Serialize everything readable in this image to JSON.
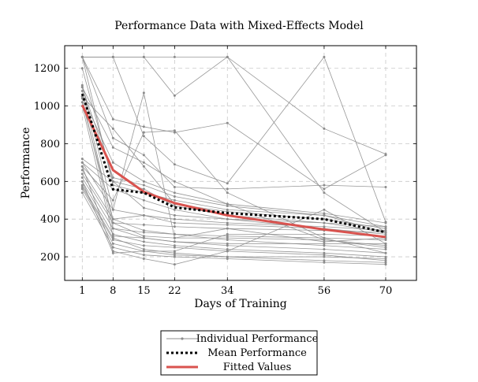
{
  "chart_data": {
    "type": "line",
    "title": "Performance Data with Mixed-Effects Model",
    "xlabel": "Days of Training",
    "ylabel": "Performance",
    "x": [
      1,
      8,
      15,
      22,
      34,
      56,
      70
    ],
    "xticks": [
      "1",
      "8",
      "15",
      "22",
      "34",
      "56",
      "70"
    ],
    "yticks": [
      "200",
      "400",
      "600",
      "800",
      "1000",
      "1200"
    ],
    "xlim": [
      -3,
      77
    ],
    "ylim": [
      75,
      1320
    ],
    "grid": true,
    "legend_position": "bottom",
    "colors": {
      "individual": "#8c8c8c",
      "mean": "#000000",
      "fitted": "#d9534f"
    },
    "legend": [
      "Individual Performance",
      "Mean Performance",
      "Fitted Values"
    ],
    "individual_series": [
      [
        1260,
        1260,
        1260,
        1260,
        1260,
        880,
        745
      ],
      [
        1260,
        1260,
        1260,
        1055,
        1260,
        540,
        330
      ],
      [
        1260,
        1260,
        840,
        690,
        590,
        1260,
        385
      ],
      [
        1260,
        930,
        890,
        860,
        910,
        560,
        740
      ],
      [
        1260,
        830,
        740,
        570,
        560,
        580,
        570
      ],
      [
        1260,
        580,
        540,
        500,
        450,
        420,
        330
      ],
      [
        1110,
        450,
        1070,
        300,
        300,
        290,
        260
      ],
      [
        1050,
        880,
        680,
        480,
        440,
        400,
        350
      ],
      [
        720,
        600,
        560,
        470,
        420,
        380,
        330
      ],
      [
        700,
        560,
        500,
        450,
        400,
        350,
        300
      ],
      [
        680,
        500,
        860,
        870,
        540,
        300,
        220
      ],
      [
        660,
        400,
        340,
        320,
        290,
        260,
        240
      ],
      [
        640,
        380,
        310,
        300,
        350,
        280,
        300
      ],
      [
        620,
        350,
        300,
        280,
        260,
        240,
        220
      ],
      [
        600,
        320,
        280,
        260,
        240,
        220,
        200
      ],
      [
        580,
        300,
        240,
        220,
        200,
        200,
        190
      ],
      [
        570,
        290,
        260,
        250,
        230,
        210,
        180
      ],
      [
        560,
        270,
        230,
        210,
        200,
        180,
        170
      ],
      [
        540,
        250,
        210,
        200,
        190,
        170,
        160
      ],
      [
        680,
        230,
        190,
        160,
        230,
        450,
        270
      ],
      [
        600,
        220,
        230,
        230,
        320,
        320,
        310
      ],
      [
        1020,
        400,
        420,
        380,
        370,
        350,
        320
      ],
      [
        1050,
        700,
        600,
        540,
        480,
        430,
        380
      ],
      [
        1100,
        620,
        580,
        520,
        470,
        420,
        360
      ],
      [
        1100,
        780,
        700,
        600,
        480,
        290,
        250
      ],
      [
        1080,
        380,
        370,
        360,
        350,
        340,
        330
      ],
      [
        1040,
        350,
        330,
        320,
        310,
        300,
        290
      ],
      [
        1000,
        310,
        300,
        280,
        270,
        270,
        270
      ],
      [
        1200,
        600,
        460,
        420,
        400,
        380,
        360
      ],
      [
        700,
        450,
        420,
        400,
        380,
        360,
        340
      ]
    ],
    "mean_performance": [
      1065,
      558,
      540,
      462,
      432,
      400,
      330
    ],
    "fitted_values": [
      1005,
      660,
      545,
      485,
      420,
      345,
      305
    ]
  }
}
